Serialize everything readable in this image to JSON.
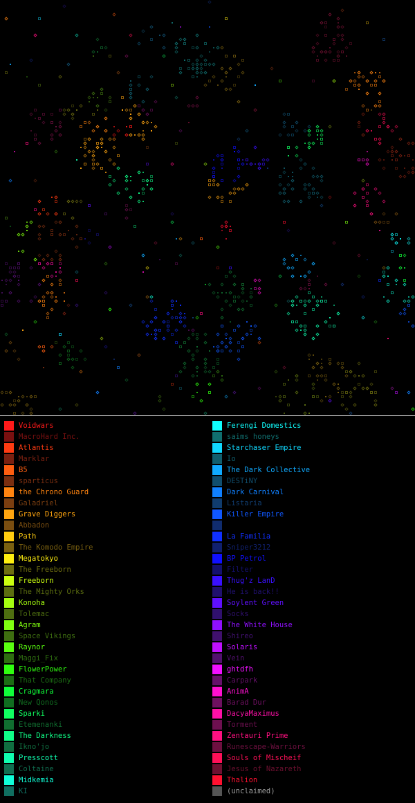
{
  "map": {
    "grid_cols": 100,
    "grid_rows": 100,
    "unclaimed_color": "#555555"
  },
  "legend": {
    "left": [
      {
        "name": "Voidwars",
        "color": "#ff1a1a",
        "dim": false
      },
      {
        "name": "MacroHard Inc.",
        "color": "#7a1010",
        "dim": true
      },
      {
        "name": "Atlantis",
        "color": "#ff3b12",
        "dim": false
      },
      {
        "name": "Marklar",
        "color": "#7a2010",
        "dim": true
      },
      {
        "name": "B5",
        "color": "#ff5e10",
        "dim": false
      },
      {
        "name": "sparticus",
        "color": "#7a2e10",
        "dim": true
      },
      {
        "name": "the Chrono Guard",
        "color": "#ff8410",
        "dim": false
      },
      {
        "name": "Galadriel",
        "color": "#7a3e10",
        "dim": true
      },
      {
        "name": "Grave Diggers",
        "color": "#ffa510",
        "dim": false
      },
      {
        "name": "Abbadon",
        "color": "#7a4e10",
        "dim": true
      },
      {
        "name": "Path",
        "color": "#ffcc10",
        "dim": false
      },
      {
        "name": "The Komodo Empire",
        "color": "#7a6010",
        "dim": true
      },
      {
        "name": "Megatokyo",
        "color": "#ffee10",
        "dim": false
      },
      {
        "name": "The Freeborn",
        "color": "#6e6e10",
        "dim": true
      },
      {
        "name": "Freeborn",
        "color": "#ccff10",
        "dim": false
      },
      {
        "name": "The Mighty Orks",
        "color": "#5c6e10",
        "dim": true
      },
      {
        "name": "Konoha",
        "color": "#a6ff10",
        "dim": false
      },
      {
        "name": "Tolemac",
        "color": "#4e6e10",
        "dim": true
      },
      {
        "name": "Agram",
        "color": "#80ff10",
        "dim": false
      },
      {
        "name": "Space Vikings",
        "color": "#3e6e10",
        "dim": true
      },
      {
        "name": "Raynor",
        "color": "#5aff10",
        "dim": false
      },
      {
        "name": "Maggi_Fix",
        "color": "#2e6e10",
        "dim": true
      },
      {
        "name": "FlowerPower",
        "color": "#30ff10",
        "dim": false
      },
      {
        "name": "That Company",
        "color": "#1c6e14",
        "dim": true
      },
      {
        "name": "Cragmara",
        "color": "#10ff3a",
        "dim": false
      },
      {
        "name": "New Qonos",
        "color": "#106e20",
        "dim": true
      },
      {
        "name": "Sparki",
        "color": "#10ff60",
        "dim": false
      },
      {
        "name": "Etemenanki",
        "color": "#106e30",
        "dim": true
      },
      {
        "name": "The Darkness",
        "color": "#10ff88",
        "dim": false
      },
      {
        "name": "Ikno'jo",
        "color": "#106e40",
        "dim": true
      },
      {
        "name": "Presscott",
        "color": "#10ffb0",
        "dim": false
      },
      {
        "name": "Coltaine",
        "color": "#106e50",
        "dim": true
      },
      {
        "name": "Midkemia",
        "color": "#10ffd8",
        "dim": false
      },
      {
        "name": "KI",
        "color": "#106e60",
        "dim": true
      }
    ],
    "right": [
      {
        "name": "Ferengi Domestics",
        "color": "#10ffff",
        "dim": false
      },
      {
        "name": "saims honeys",
        "color": "#106e6e",
        "dim": true
      },
      {
        "name": "Starchaser Empire",
        "color": "#10d8ff",
        "dim": false
      },
      {
        "name": "Io",
        "color": "#105e6e",
        "dim": true
      },
      {
        "name": "The Dark Collective",
        "color": "#10aaff",
        "dim": false
      },
      {
        "name": "DESTiNY",
        "color": "#104e6e",
        "dim": true
      },
      {
        "name": "Dark Carnival",
        "color": "#1080ff",
        "dim": false
      },
      {
        "name": "Listaria",
        "color": "#103c6e",
        "dim": true
      },
      {
        "name": "Killer Empire",
        "color": "#1058ff",
        "dim": false
      },
      {
        "name": "",
        "color": "#102c6e",
        "dim": true
      },
      {
        "name": "La Familia",
        "color": "#1030ff",
        "dim": false
      },
      {
        "name": "Sniper3212",
        "color": "#10206e",
        "dim": true
      },
      {
        "name": "BP Petrol",
        "color": "#1010ff",
        "dim": false
      },
      {
        "name": "Filter",
        "color": "#14106e",
        "dim": true
      },
      {
        "name": "Thug'z LanD",
        "color": "#3a10ff",
        "dim": false
      },
      {
        "name": "He is back!!",
        "color": "#20106e",
        "dim": true
      },
      {
        "name": "Soylent Green",
        "color": "#6010ff",
        "dim": false
      },
      {
        "name": "Socks",
        "color": "#30106e",
        "dim": true
      },
      {
        "name": "The White House",
        "color": "#9010ff",
        "dim": false
      },
      {
        "name": "Shireo",
        "color": "#40106e",
        "dim": true
      },
      {
        "name": "Solaris",
        "color": "#c010ff",
        "dim": false
      },
      {
        "name": "Vein",
        "color": "#52106e",
        "dim": true
      },
      {
        "name": "ghtdfh",
        "color": "#f010ff",
        "dim": false
      },
      {
        "name": "Carpark",
        "color": "#66106a",
        "dim": true
      },
      {
        "name": "AnimA",
        "color": "#ff10d0",
        "dim": false
      },
      {
        "name": "Barad Dur",
        "color": "#6e1060",
        "dim": true
      },
      {
        "name": "DacyaMaximus",
        "color": "#ff10a8",
        "dim": false
      },
      {
        "name": "Torment",
        "color": "#6e1050",
        "dim": true
      },
      {
        "name": "Zentauri Prime",
        "color": "#ff1080",
        "dim": false
      },
      {
        "name": "Runescape-Warriors",
        "color": "#6e1040",
        "dim": true
      },
      {
        "name": "Souls of Mischeif",
        "color": "#ff1058",
        "dim": false
      },
      {
        "name": "Jesus of Nazareth",
        "color": "#6e1030",
        "dim": true
      },
      {
        "name": "Thalion",
        "color": "#ff1030",
        "dim": false
      },
      {
        "name": "(unclaimed)",
        "color": "#555555",
        "dim": true,
        "unclaimed": true
      }
    ]
  }
}
